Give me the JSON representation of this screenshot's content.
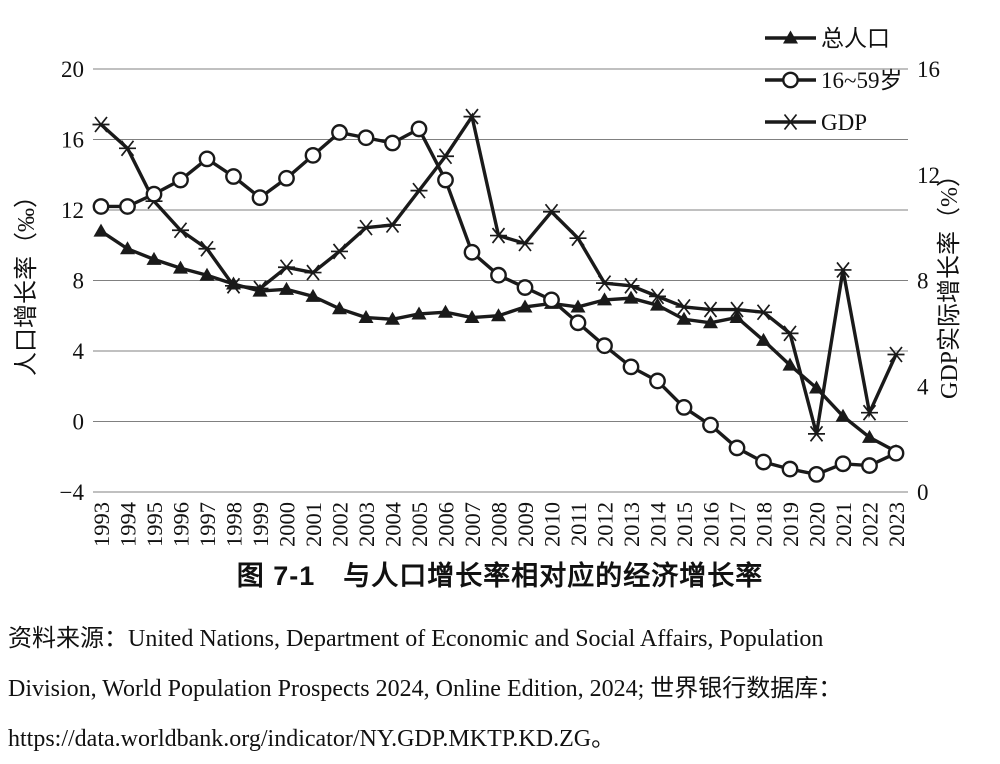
{
  "figure": {
    "caption": "图 7-1　与人口增长率相对应的经济增长率",
    "source_lines": [
      "资料来源：United Nations, Department of Economic and Social Affairs, Population",
      "Division, World Population Prospects 2024, Online Edition, 2024; 世界银行数据库：",
      "https://data.worldbank.org/indicator/NY.GDP.MKTP.KD.ZG。"
    ]
  },
  "chart_data": {
    "type": "line",
    "title": "图 7-1 与人口增长率相对应的经济增长率",
    "x": [
      1993,
      1994,
      1995,
      1996,
      1997,
      1998,
      1999,
      2000,
      2001,
      2002,
      2003,
      2004,
      2005,
      2006,
      2007,
      2008,
      2009,
      2010,
      2011,
      2012,
      2013,
      2014,
      2015,
      2016,
      2017,
      2018,
      2019,
      2020,
      2021,
      2022,
      2023
    ],
    "series": [
      {
        "id": "total-population",
        "name": "总人口",
        "axis": "left",
        "marker": "triangle",
        "values": [
          10.8,
          9.8,
          9.2,
          8.7,
          8.3,
          7.8,
          7.4,
          7.5,
          7.1,
          6.4,
          5.9,
          5.8,
          6.1,
          6.2,
          5.9,
          6.0,
          6.5,
          6.7,
          6.5,
          6.9,
          7.0,
          6.6,
          5.8,
          5.6,
          5.9,
          4.6,
          3.2,
          1.9,
          0.3,
          -0.9,
          -1.7
        ]
      },
      {
        "id": "age-16-59",
        "name": "16~59岁",
        "axis": "left",
        "marker": "circle",
        "values": [
          12.2,
          12.2,
          12.9,
          13.7,
          14.9,
          13.9,
          12.7,
          13.8,
          15.1,
          16.4,
          16.1,
          15.8,
          16.6,
          13.7,
          9.6,
          8.3,
          7.6,
          6.9,
          5.6,
          4.3,
          3.1,
          2.3,
          0.8,
          -0.2,
          -1.5,
          -2.3,
          -2.7,
          -3.0,
          -2.4,
          -2.5,
          -1.8
        ]
      },
      {
        "id": "gdp",
        "name": "GDP",
        "axis": "right",
        "marker": "asterisk",
        "values": [
          13.9,
          13.0,
          11.0,
          9.9,
          9.2,
          7.8,
          7.7,
          8.5,
          8.3,
          9.1,
          10.0,
          10.1,
          11.4,
          12.7,
          14.2,
          9.7,
          9.4,
          10.6,
          9.6,
          7.9,
          7.8,
          7.4,
          7.0,
          6.9,
          6.9,
          6.8,
          6.0,
          2.2,
          8.4,
          3.0,
          5.2
        ]
      }
    ],
    "left_axis": {
      "label": "人口增长率（‰）",
      "ticks": [
        20,
        16,
        12,
        8,
        4,
        0,
        -4
      ],
      "range": [
        -4,
        20
      ]
    },
    "right_axis": {
      "label": "GDP实际增长率（%）",
      "ticks": [
        16,
        12,
        8,
        4,
        0
      ],
      "range": [
        0,
        16
      ]
    },
    "grid": "horizontal",
    "legend_position": "top-right",
    "line_color": "#1a1a1a",
    "text_color": "#111111",
    "grid_color": "#808080"
  }
}
